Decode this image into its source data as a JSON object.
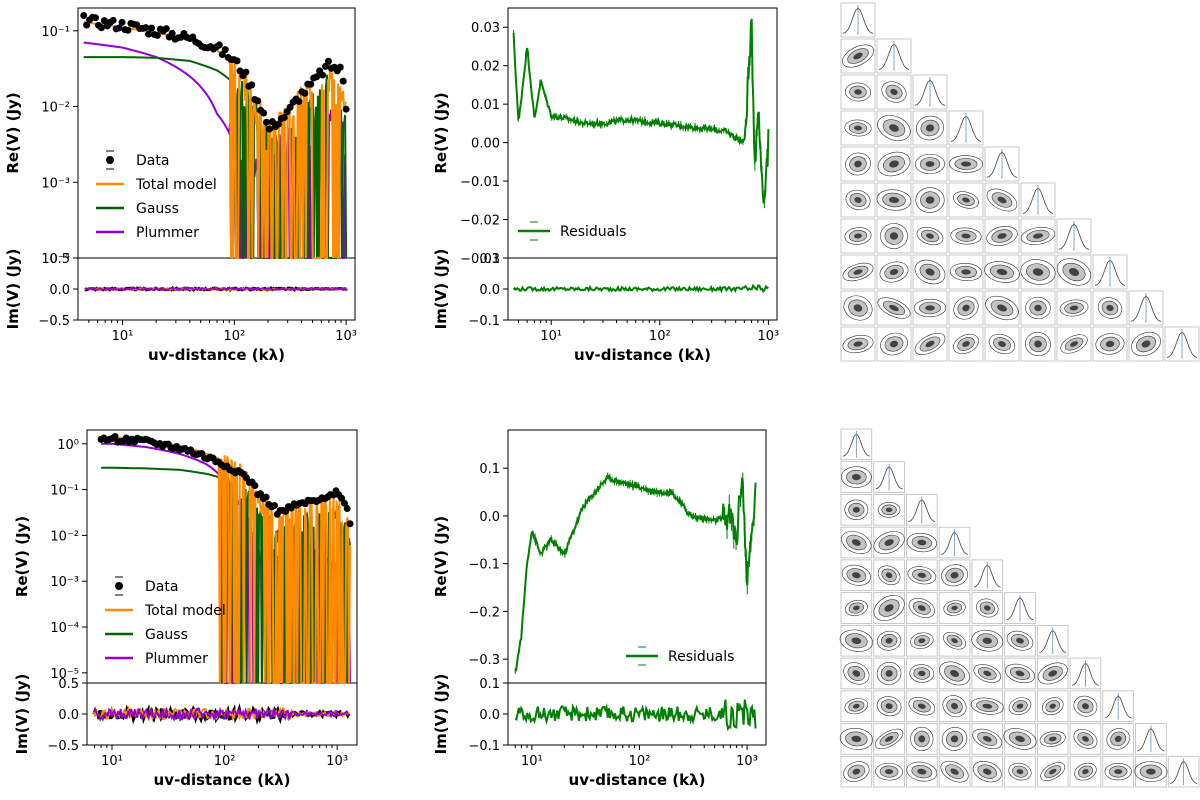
{
  "chart_data": [
    {
      "type": "line",
      "panel": "top-left",
      "xlabel": "uv-distance (kλ)",
      "ylabel_top": "Re(V) (Jy)",
      "ylabel_bottom": "Im(V) (Jy)",
      "xscale": "log",
      "xlim": [
        4,
        1200
      ],
      "yscale_top": "log",
      "ylim_top": [
        0.0001,
        0.2
      ],
      "ylim_bottom": [
        -0.5,
        0.5
      ],
      "xticks": [
        "10¹",
        "10²",
        "10³"
      ],
      "yticks_top": [
        "10⁻⁴",
        "10⁻³",
        "10⁻²",
        "10⁻¹"
      ],
      "yticks_bottom": [
        "0.5",
        "0.0",
        "−0.5"
      ],
      "legend": [
        "Data",
        "Total model",
        "Gauss",
        "Plummer"
      ],
      "legend_location": "lower-left",
      "series": [
        {
          "name": "Data",
          "x": [
            4.5,
            6,
            10,
            20,
            40,
            70,
            100,
            150,
            200,
            300,
            500,
            700,
            900,
            1000
          ],
          "values": [
            0.14,
            0.13,
            0.12,
            0.1,
            0.08,
            0.06,
            0.04,
            0.015,
            0.005,
            0.008,
            0.02,
            0.035,
            0.03,
            0.01
          ]
        },
        {
          "name": "Total model",
          "x": [
            4.5,
            10,
            20,
            40,
            70,
            100,
            150,
            200,
            300,
            500,
            700,
            1000
          ],
          "values": [
            0.13,
            0.11,
            0.095,
            0.075,
            0.055,
            0.035,
            0.012,
            0.004,
            0.007,
            0.018,
            0.03,
            0.008
          ]
        },
        {
          "name": "Gauss",
          "x": [
            4.5,
            10,
            20,
            40,
            70,
            100,
            150,
            200,
            300,
            500,
            700,
            1000
          ],
          "values": [
            0.045,
            0.045,
            0.044,
            0.04,
            0.03,
            0.02,
            0.01,
            0.004,
            0.003,
            0.01,
            0.02,
            0.005
          ]
        },
        {
          "name": "Plummer",
          "x": [
            4.5,
            10,
            20,
            40,
            70,
            100,
            150,
            200,
            300,
            500,
            700,
            1000
          ],
          "values": [
            0.07,
            0.06,
            0.045,
            0.025,
            0.008,
            0.003,
            0.0015,
            0.002,
            0.004,
            0.006,
            0.008,
            0.003
          ]
        }
      ]
    },
    {
      "type": "line",
      "panel": "top-middle",
      "xlabel": "uv-distance (kλ)",
      "ylabel_top": "Re(V) (Jy)",
      "ylabel_bottom": "Im(V) (Jy)",
      "xscale": "log",
      "xlim": [
        4,
        1200
      ],
      "ylim_top": [
        -0.03,
        0.035
      ],
      "ylim_bottom": [
        -0.1,
        0.1
      ],
      "xticks": [
        "10¹",
        "10²",
        "10³"
      ],
      "yticks_top": [
        "0.03",
        "0.02",
        "0.01",
        "0.00",
        "−0.01",
        "−0.02",
        "−0.03"
      ],
      "yticks_bottom": [
        "0.1",
        "0.0",
        "−0.1"
      ],
      "legend": [
        "Residuals"
      ],
      "legend_location": "lower-left",
      "series": [
        {
          "name": "Residuals",
          "x": [
            4.5,
            5,
            6,
            7,
            8,
            10,
            15,
            20,
            30,
            50,
            100,
            200,
            400,
            600,
            700,
            750,
            800,
            900,
            1000
          ],
          "values": [
            0.028,
            0.005,
            0.025,
            0.006,
            0.016,
            0.007,
            0.006,
            0.005,
            0.005,
            0.006,
            0.005,
            0.004,
            0.003,
            0.0,
            0.03,
            -0.005,
            0.01,
            -0.015,
            0.0
          ]
        }
      ]
    },
    {
      "type": "line",
      "panel": "bottom-left",
      "xlabel": "uv-distance (kλ)",
      "ylabel_top": "Re(V) (Jy)",
      "ylabel_bottom": "Im(V) (Jy)",
      "xscale": "log",
      "xlim": [
        6,
        1500
      ],
      "yscale_top": "log",
      "ylim_top": [
        6e-06,
        2
      ],
      "ylim_bottom": [
        -0.5,
        0.5
      ],
      "xticks": [
        "10¹",
        "10²",
        "10³"
      ],
      "yticks_top": [
        "10⁻⁵",
        "10⁻⁴",
        "10⁻³",
        "10⁻²",
        "10⁻¹",
        "10⁰"
      ],
      "yticks_bottom": [
        "0.5",
        "0.0",
        "−0.5"
      ],
      "legend": [
        "Data",
        "Total model",
        "Gauss",
        "Plummer"
      ],
      "legend_location": "lower-left",
      "series": [
        {
          "name": "Data",
          "x": [
            8,
            10,
            20,
            40,
            70,
            100,
            150,
            200,
            300,
            500,
            800,
            1000,
            1300
          ],
          "values": [
            1.2,
            1.3,
            1.1,
            0.8,
            0.5,
            0.35,
            0.2,
            0.08,
            0.03,
            0.05,
            0.06,
            0.1,
            0.02
          ]
        },
        {
          "name": "Total model",
          "x": [
            8,
            10,
            20,
            40,
            70,
            100,
            150,
            200,
            300,
            500,
            800,
            1000,
            1300
          ],
          "values": [
            1.3,
            1.4,
            1.2,
            0.9,
            0.6,
            0.4,
            0.2,
            0.05,
            0.02,
            0.04,
            0.05,
            0.05,
            0.01
          ]
        },
        {
          "name": "Gauss",
          "x": [
            8,
            10,
            20,
            40,
            70,
            100,
            150,
            200,
            300,
            500,
            800,
            1000,
            1300
          ],
          "values": [
            0.3,
            0.3,
            0.29,
            0.27,
            0.22,
            0.17,
            0.09,
            0.03,
            0.01,
            0.02,
            0.03,
            0.03,
            0.005
          ]
        },
        {
          "name": "Plummer",
          "x": [
            8,
            10,
            20,
            40,
            70,
            100,
            150,
            200,
            300,
            500,
            800,
            1000,
            1300
          ],
          "values": [
            1.0,
            1.0,
            0.85,
            0.6,
            0.35,
            0.15,
            0.02,
            0.005,
            0.003,
            0.004,
            0.003,
            0.002,
            0.001
          ]
        }
      ]
    },
    {
      "type": "line",
      "panel": "bottom-middle",
      "xlabel": "uv-distance (kλ)",
      "ylabel_top": "Re(V) (Jy)",
      "ylabel_bottom": "Im(V) (Jy)",
      "xscale": "log",
      "xlim": [
        6,
        1500
      ],
      "ylim_top": [
        -0.35,
        0.18
      ],
      "ylim_bottom": [
        -0.1,
        0.1
      ],
      "xticks": [
        "10¹",
        "10²",
        "10³"
      ],
      "yticks_top": [
        "0.1",
        "0.0",
        "−0.1",
        "−0.2",
        "−0.3"
      ],
      "yticks_bottom": [
        "0.1",
        "0.0",
        "−0.1"
      ],
      "legend": [
        "Residuals"
      ],
      "legend_location": "lower-right",
      "series": [
        {
          "name": "Residuals",
          "x": [
            7,
            8,
            9,
            10,
            12,
            15,
            20,
            30,
            50,
            70,
            100,
            150,
            200,
            300,
            500,
            700,
            800,
            900,
            1000,
            1200
          ],
          "values": [
            -0.33,
            -0.25,
            -0.1,
            -0.03,
            -0.08,
            -0.05,
            -0.08,
            0.02,
            0.08,
            0.07,
            0.06,
            0.05,
            0.05,
            0.0,
            -0.01,
            0.0,
            -0.05,
            0.1,
            -0.15,
            0.05
          ]
        }
      ]
    }
  ],
  "corner_plots": [
    {
      "name": "top-corner-plot",
      "n_params": 10
    },
    {
      "name": "bottom-corner-plot",
      "n_params": 11
    }
  ],
  "colors": {
    "data": "#000000",
    "total_model": "#ff8c00",
    "gauss": "#006400",
    "plummer": "#9400d3",
    "residuals": "#008000",
    "contour": "#333333"
  }
}
